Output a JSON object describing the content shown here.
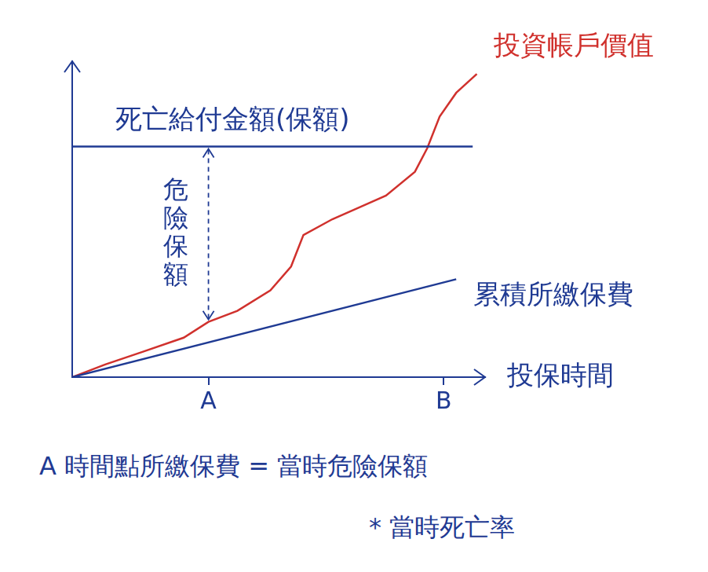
{
  "chart_data": {
    "type": "line",
    "x_label": "投保時間",
    "xlim": [
      0,
      100
    ],
    "ylim": [
      0,
      100
    ],
    "xticks": [
      {
        "value": 33,
        "label": "A"
      },
      {
        "value": 90,
        "label": "B"
      }
    ],
    "tick_labels": "x",
    "grid": false,
    "series": [
      {
        "name": "死亡給付金額(保額)",
        "color": "#1f3a93",
        "x": [
          0,
          97
        ],
        "values": [
          73,
          73
        ]
      },
      {
        "name": "累積所繳保費",
        "color": "#1f3a93",
        "x": [
          0,
          93
        ],
        "values": [
          0,
          31
        ]
      },
      {
        "name": "投資帳戶價值",
        "color": "#d0312d",
        "x": [
          0,
          8,
          17,
          27,
          33,
          40,
          48,
          53,
          56,
          63,
          70,
          76,
          83,
          86,
          89,
          93,
          98
        ],
        "values": [
          0,
          4,
          8,
          12.5,
          17.5,
          21,
          27.5,
          35,
          45,
          50,
          54,
          57.5,
          65,
          72.5,
          82.5,
          90,
          96
        ]
      }
    ],
    "annotations": [
      {
        "text": "危險保額",
        "x": 33,
        "y_from": 17.5,
        "y_to": 73
      }
    ],
    "notes": [
      "A 時間點所繳保費 = 當時危險保額",
      "* 當時死亡率"
    ]
  }
}
